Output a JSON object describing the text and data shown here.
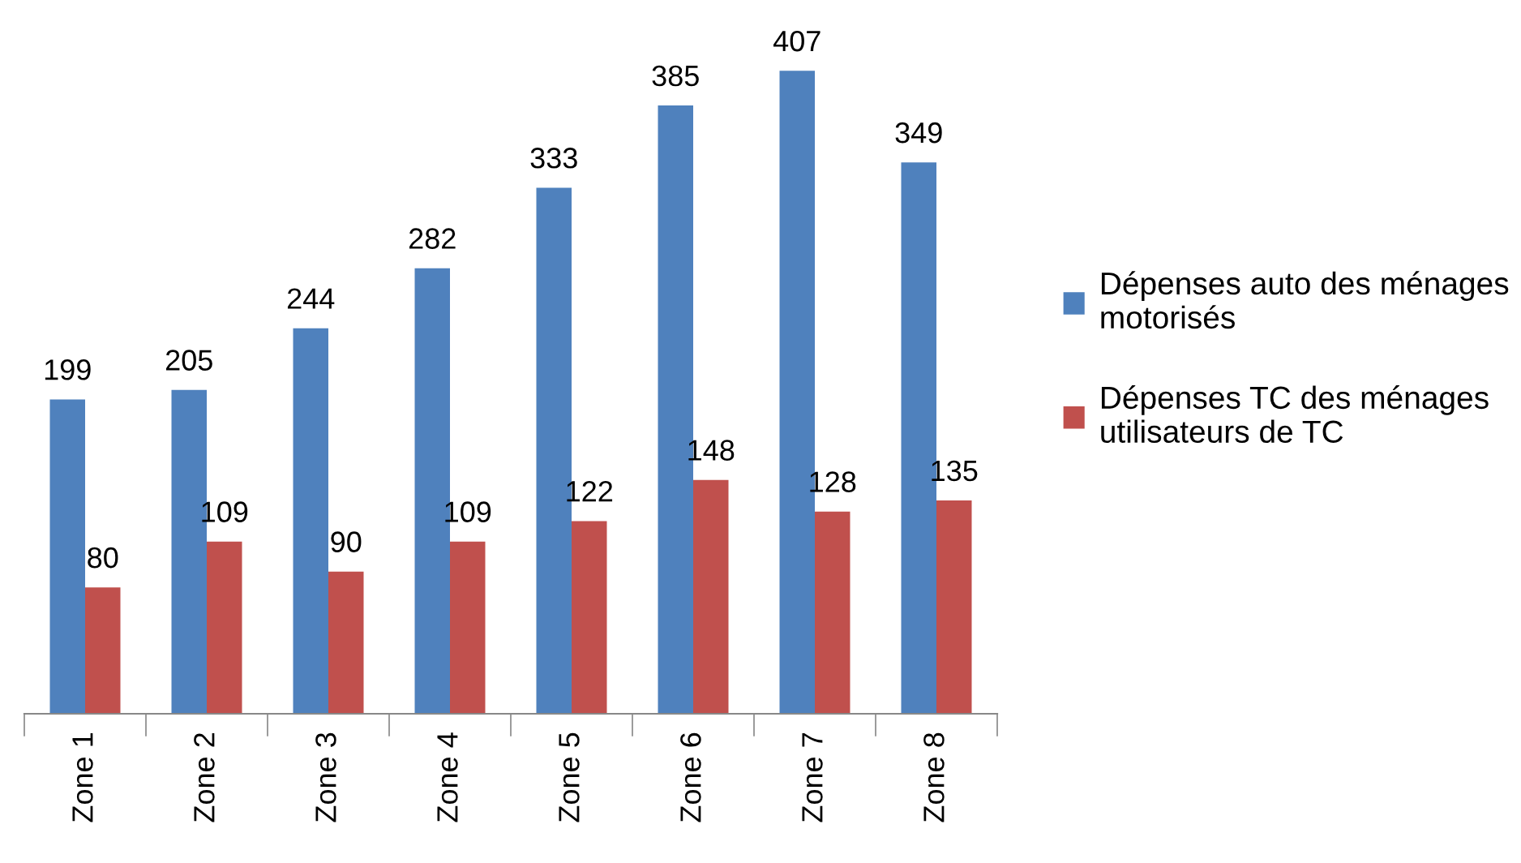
{
  "chart_data": {
    "type": "bar",
    "categories": [
      "Zone 1",
      "Zone 2",
      "Zone 3",
      "Zone 4",
      "Zone 5",
      "Zone 6",
      "Zone 7",
      "Zone 8"
    ],
    "series": [
      {
        "name": "Dépenses auto des ménages\nmotorisés",
        "color": "#4f81bd",
        "values": [
          199,
          205,
          244,
          282,
          333,
          385,
          407,
          349
        ]
      },
      {
        "name": "Dépenses TC des ménages\nutilisateurs de TC",
        "color": "#c0504d",
        "values": [
          80,
          109,
          90,
          109,
          122,
          148,
          128,
          135
        ]
      }
    ],
    "data_labels": true,
    "legend": "right",
    "grid": false,
    "tick_labels": "x"
  }
}
